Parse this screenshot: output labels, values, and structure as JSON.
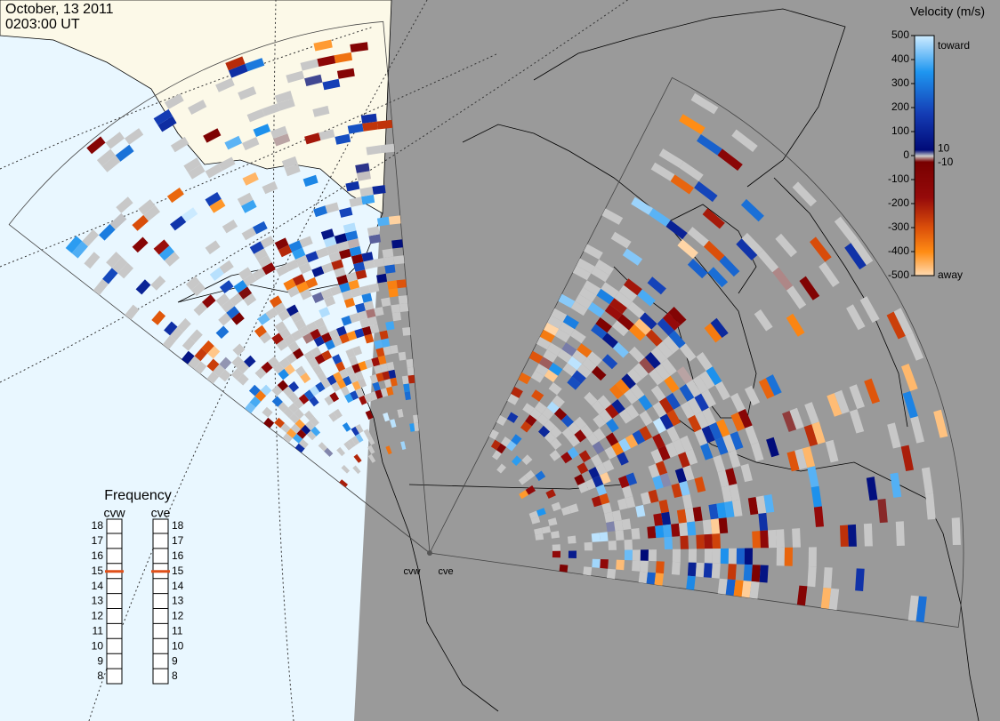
{
  "header": {
    "date": "October, 13 2011",
    "time": "0203:00 UT"
  },
  "velocity_legend": {
    "title": "Velocity (m/s)",
    "ticks": [
      500,
      400,
      300,
      200,
      100,
      0,
      -100,
      -200,
      -300,
      -400,
      -500
    ],
    "inner_ticks": [
      10,
      -10
    ],
    "toward": "toward",
    "away": "away"
  },
  "frequency": {
    "title": "Frequency",
    "radars": [
      {
        "name": "cvw",
        "selected": 15
      },
      {
        "name": "cve",
        "selected": 15
      }
    ],
    "scale": [
      18,
      17,
      16,
      15,
      14,
      13,
      12,
      11,
      10,
      9,
      8
    ]
  },
  "sites": [
    "cvw",
    "cve"
  ]
}
